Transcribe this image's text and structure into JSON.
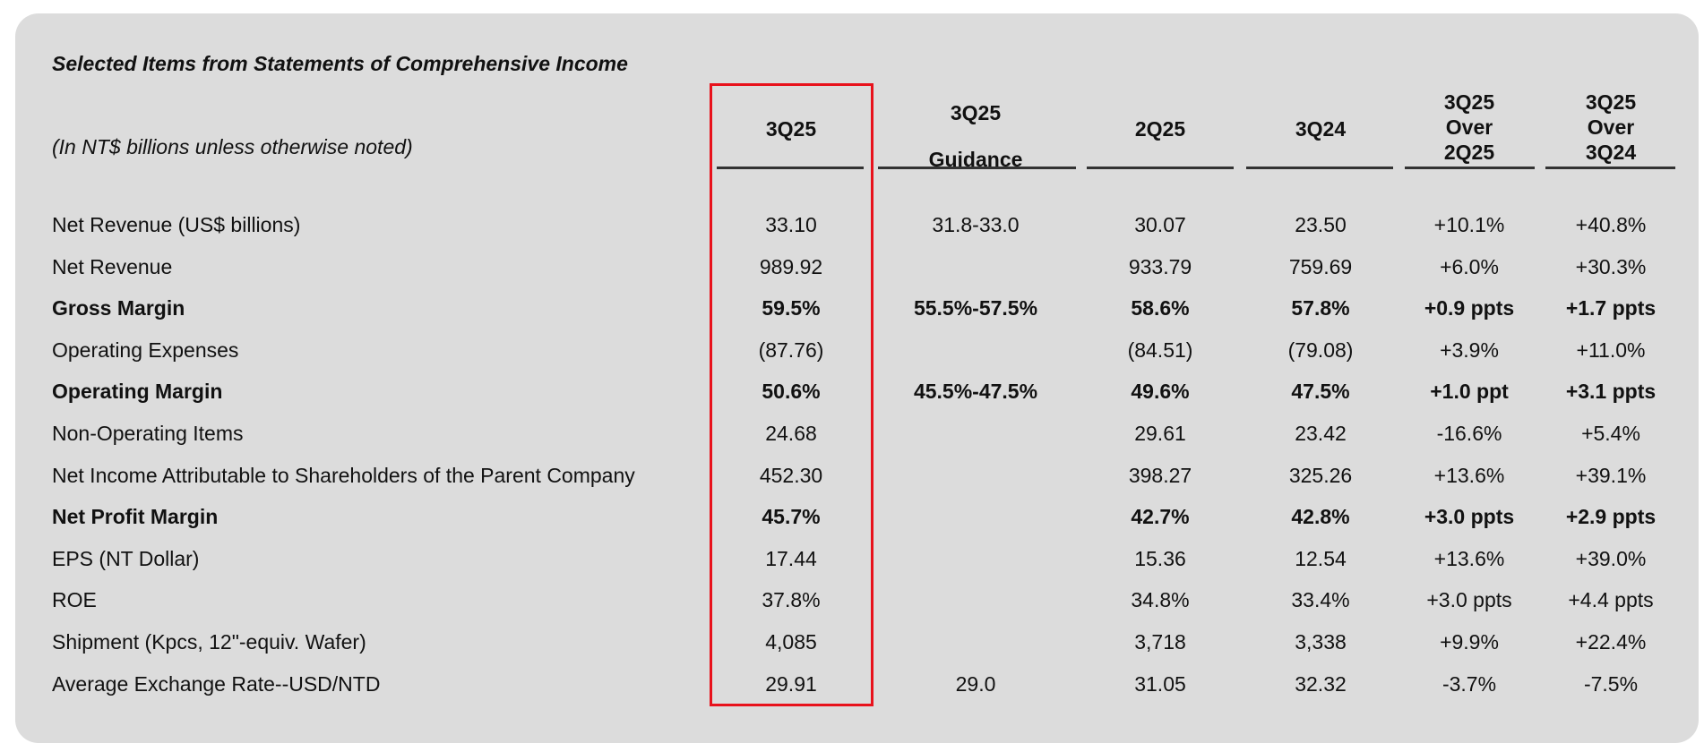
{
  "title": "Selected Items from Statements of Comprehensive Income",
  "subtitle": "(In NT$ billions unless otherwise noted)",
  "highlight_color": "#e8121c",
  "columns": [
    {
      "lines": [
        "3Q25"
      ]
    },
    {
      "lines": [
        "3Q25",
        "Guidance"
      ]
    },
    {
      "lines": [
        "2Q25"
      ]
    },
    {
      "lines": [
        "3Q24"
      ]
    },
    {
      "lines": [
        "3Q25",
        "Over",
        "2Q25"
      ]
    },
    {
      "lines": [
        "3Q25",
        "Over",
        "3Q24"
      ]
    }
  ],
  "rows": [
    {
      "label": "Net Revenue (US$ billions)",
      "bold": false,
      "values": [
        "33.10",
        "31.8-33.0",
        "30.07",
        "23.50",
        "+10.1%",
        "+40.8%"
      ]
    },
    {
      "label": "Net Revenue",
      "bold": false,
      "values": [
        "989.92",
        "",
        "933.79",
        "759.69",
        "+6.0%",
        "+30.3%"
      ]
    },
    {
      "label": "Gross Margin",
      "bold": true,
      "values": [
        "59.5%",
        "55.5%-57.5%",
        "58.6%",
        "57.8%",
        "+0.9 ppts",
        "+1.7 ppts"
      ]
    },
    {
      "label": "Operating Expenses",
      "bold": false,
      "values": [
        "(87.76)",
        "",
        "(84.51)",
        "(79.08)",
        "+3.9%",
        "+11.0%"
      ]
    },
    {
      "label": "Operating Margin",
      "bold": true,
      "values": [
        "50.6%",
        "45.5%-47.5%",
        "49.6%",
        "47.5%",
        "+1.0 ppt",
        "+3.1 ppts"
      ]
    },
    {
      "label": "Non-Operating Items",
      "bold": false,
      "values": [
        "24.68",
        "",
        "29.61",
        "23.42",
        "-16.6%",
        "+5.4%"
      ]
    },
    {
      "label": "Net Income Attributable to Shareholders of the Parent Company",
      "bold": false,
      "values": [
        "452.30",
        "",
        "398.27",
        "325.26",
        "+13.6%",
        "+39.1%"
      ]
    },
    {
      "label": "Net Profit Margin",
      "bold": true,
      "values": [
        "45.7%",
        "",
        "42.7%",
        "42.8%",
        "+3.0 ppts",
        "+2.9 ppts"
      ]
    },
    {
      "label": "EPS (NT Dollar)",
      "bold": false,
      "values": [
        "17.44",
        "",
        "15.36",
        "12.54",
        "+13.6%",
        "+39.0%"
      ]
    },
    {
      "label": "ROE",
      "bold": false,
      "values": [
        "37.8%",
        "",
        "34.8%",
        "33.4%",
        "+3.0 ppts",
        "+4.4 ppts"
      ]
    },
    {
      "label": "Shipment (Kpcs, 12\"-equiv. Wafer)",
      "bold": false,
      "values": [
        "4,085",
        "",
        "3,718",
        "3,338",
        "+9.9%",
        "+22.4%"
      ]
    },
    {
      "label": "Average Exchange Rate--USD/NTD",
      "bold": false,
      "values": [
        "29.91",
        "29.0",
        "31.05",
        "32.32",
        "-3.7%",
        "-7.5%"
      ]
    }
  ]
}
